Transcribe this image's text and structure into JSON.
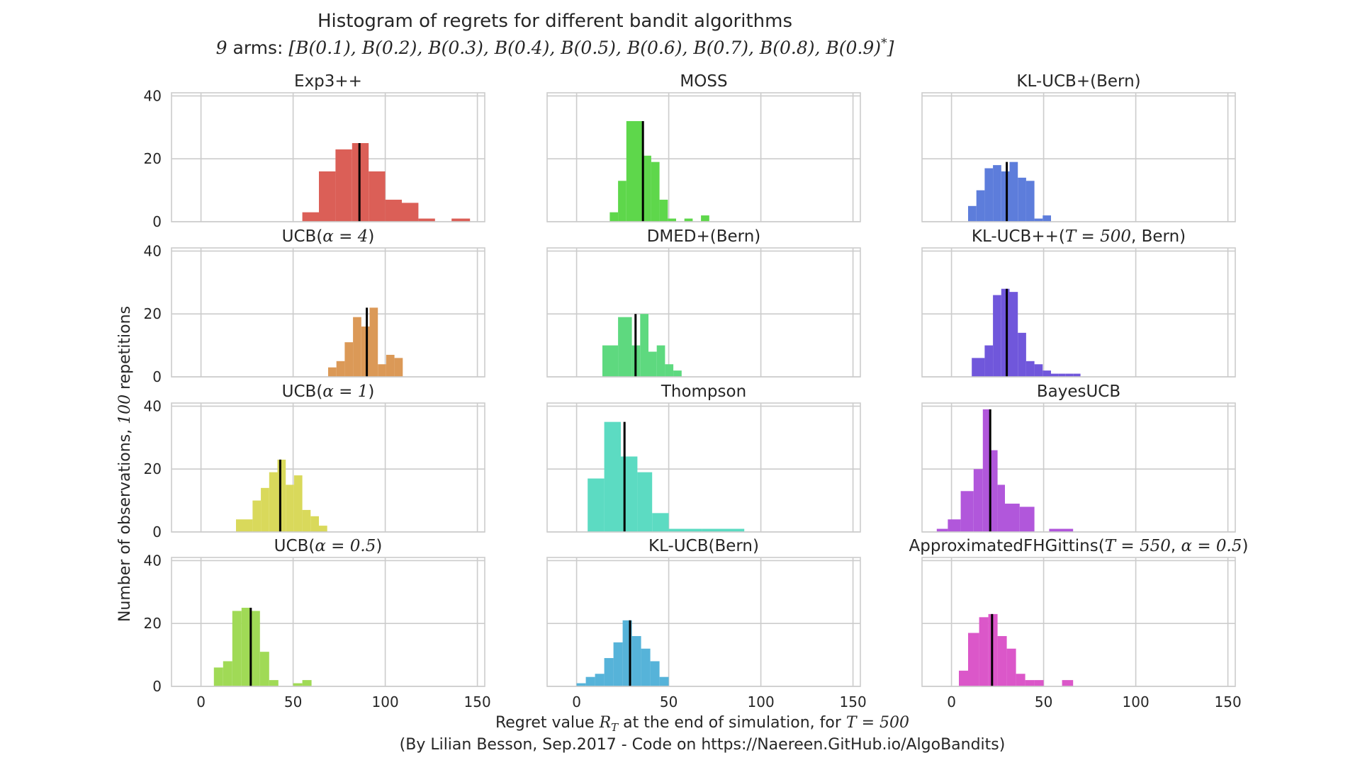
{
  "title": "Histogram of regrets for different bandit algorithms",
  "subtitle": "9 arms: [B(0.1), B(0.2), B(0.3), B(0.4), B(0.5), B(0.6), B(0.7), B(0.8), B(0.9)*]",
  "xlabel": "Regret value R_T at the end of simulation, for T = 500",
  "ylabel": "Number of observations, 100 repetitions",
  "footer": "(By Lilian Besson, Sep.2017 - Code on https://Naereen.GitHub.io/AlgoBandits)",
  "x_ticks": [
    0,
    50,
    100,
    150
  ],
  "y_ticks": [
    0,
    20,
    40
  ],
  "chart_data": {
    "type": "bar",
    "grid": true,
    "xlim": [
      -16,
      154
    ],
    "ylim": [
      0,
      41
    ],
    "panels": [
      {
        "title": "Exp3++",
        "color": "#db5f57",
        "mean": 86,
        "bins": [
          [
            55,
            64,
            3
          ],
          [
            64,
            73,
            16
          ],
          [
            73,
            82,
            23
          ],
          [
            82,
            91,
            25
          ],
          [
            91,
            100,
            16
          ],
          [
            100,
            109,
            7
          ],
          [
            109,
            118,
            6
          ],
          [
            118,
            127,
            1
          ],
          [
            136,
            146,
            1
          ]
        ]
      },
      {
        "title": "MOSS",
        "color": "#5ed74b",
        "mean": 36,
        "bins": [
          [
            18,
            22.5,
            3
          ],
          [
            22.5,
            27,
            13
          ],
          [
            27,
            31.5,
            32
          ],
          [
            31.5,
            36,
            32
          ],
          [
            36,
            40.5,
            21
          ],
          [
            40.5,
            45,
            19
          ],
          [
            45,
            49.5,
            7
          ],
          [
            49.5,
            54,
            1
          ],
          [
            58.5,
            63,
            1
          ],
          [
            67.5,
            72,
            2
          ]
        ]
      },
      {
        "title": "KL-UCB+(Bern)",
        "color": "#5d7ddb",
        "mean": 30,
        "bins": [
          [
            9,
            13.5,
            5
          ],
          [
            13.5,
            18,
            10
          ],
          [
            18,
            22.5,
            17
          ],
          [
            22.5,
            27,
            18
          ],
          [
            27,
            31.5,
            16
          ],
          [
            31.5,
            36,
            19
          ],
          [
            36,
            40.5,
            14
          ],
          [
            40.5,
            45,
            13
          ],
          [
            45,
            49.5,
            1
          ],
          [
            49.5,
            54,
            2
          ]
        ]
      },
      {
        "title": "UCB(α = 4)",
        "color": "#db9957",
        "mean": 90,
        "bins": [
          [
            69,
            73.5,
            3
          ],
          [
            73.5,
            78,
            5
          ],
          [
            78,
            82.5,
            11
          ],
          [
            82.5,
            87,
            19
          ],
          [
            87,
            91.5,
            16
          ],
          [
            91.5,
            96,
            22
          ],
          [
            96,
            100.5,
            4
          ],
          [
            100.5,
            105,
            7
          ],
          [
            105,
            109.5,
            6
          ]
        ]
      },
      {
        "title": "DMED+(Bern)",
        "color": "#5ed97f",
        "mean": 32,
        "bins": [
          [
            14,
            22.5,
            10
          ],
          [
            22.5,
            30,
            19
          ],
          [
            30,
            34.5,
            10
          ],
          [
            34.5,
            39,
            20
          ],
          [
            39,
            43.5,
            8
          ],
          [
            43.5,
            48,
            10
          ],
          [
            48,
            52.5,
            4
          ],
          [
            52.5,
            57,
            2
          ]
        ]
      },
      {
        "title": "KL-UCB++(T = 500, Bern)",
        "color": "#7057db",
        "mean": 30,
        "bins": [
          [
            11,
            18,
            6
          ],
          [
            18,
            22.5,
            10
          ],
          [
            22.5,
            27,
            26
          ],
          [
            27,
            31.5,
            28
          ],
          [
            31.5,
            36,
            27
          ],
          [
            36,
            40.5,
            14
          ],
          [
            40.5,
            45,
            5
          ],
          [
            45,
            49.5,
            4
          ],
          [
            49.5,
            54,
            2
          ],
          [
            54,
            58,
            1
          ],
          [
            58,
            62,
            1
          ],
          [
            62,
            66,
            1
          ],
          [
            66,
            70,
            1
          ]
        ]
      },
      {
        "title": "UCB(α = 1)",
        "color": "#d9d95b",
        "mean": 43,
        "bins": [
          [
            19,
            28,
            4
          ],
          [
            28,
            32.5,
            10
          ],
          [
            32.5,
            37,
            14
          ],
          [
            37,
            41.5,
            19
          ],
          [
            41.5,
            46,
            23
          ],
          [
            46,
            50.5,
            15
          ],
          [
            50.5,
            55,
            18
          ],
          [
            55,
            59.5,
            7
          ],
          [
            59.5,
            64,
            5
          ],
          [
            64,
            68.5,
            2
          ]
        ]
      },
      {
        "title": "Thompson",
        "color": "#5cdbc2",
        "mean": 26,
        "bins": [
          [
            6,
            15,
            17
          ],
          [
            15,
            24,
            35
          ],
          [
            24,
            33,
            24
          ],
          [
            33,
            41,
            19
          ],
          [
            41,
            50,
            6
          ],
          [
            50,
            68,
            1
          ],
          [
            68,
            91,
            1
          ]
        ]
      },
      {
        "title": "BayesUCB",
        "color": "#b157db",
        "mean": 21,
        "bins": [
          [
            -8,
            -2,
            1
          ],
          [
            -2,
            5,
            4
          ],
          [
            5,
            12,
            13
          ],
          [
            12,
            17,
            20
          ],
          [
            17,
            21,
            39
          ],
          [
            21,
            25,
            26
          ],
          [
            25,
            29,
            15
          ],
          [
            29,
            37,
            9
          ],
          [
            37,
            45,
            8
          ],
          [
            53,
            66,
            1
          ]
        ]
      },
      {
        "title": "UCB(α = 0.5)",
        "color": "#a0da56",
        "mean": 27,
        "bins": [
          [
            7,
            12,
            6
          ],
          [
            12,
            17,
            8
          ],
          [
            17,
            22,
            24
          ],
          [
            22,
            27,
            25
          ],
          [
            27,
            32,
            24
          ],
          [
            32,
            37,
            11
          ],
          [
            37,
            42,
            2
          ],
          [
            50,
            55,
            1
          ],
          [
            55,
            60,
            2
          ]
        ]
      },
      {
        "title": "KL-UCB(Bern)",
        "color": "#56b3d9",
        "mean": 29,
        "bins": [
          [
            0,
            5,
            1
          ],
          [
            5,
            10,
            3
          ],
          [
            10,
            15,
            4
          ],
          [
            15,
            20,
            9
          ],
          [
            20,
            25,
            14
          ],
          [
            25,
            30,
            21
          ],
          [
            30,
            35,
            16
          ],
          [
            35,
            40,
            12
          ],
          [
            40,
            45,
            8
          ],
          [
            45,
            50,
            3
          ]
        ]
      },
      {
        "title": "ApproximatedFHGittins(T = 550, α = 0.5)",
        "color": "#db57c9",
        "mean": 22,
        "bins": [
          [
            4,
            9,
            5
          ],
          [
            9,
            15,
            17
          ],
          [
            15,
            20,
            22
          ],
          [
            20,
            25,
            23
          ],
          [
            25,
            30,
            16
          ],
          [
            30,
            35,
            12
          ],
          [
            35,
            40,
            4
          ],
          [
            40,
            45,
            2
          ],
          [
            45,
            50,
            2
          ],
          [
            60,
            66,
            2
          ]
        ]
      }
    ]
  }
}
